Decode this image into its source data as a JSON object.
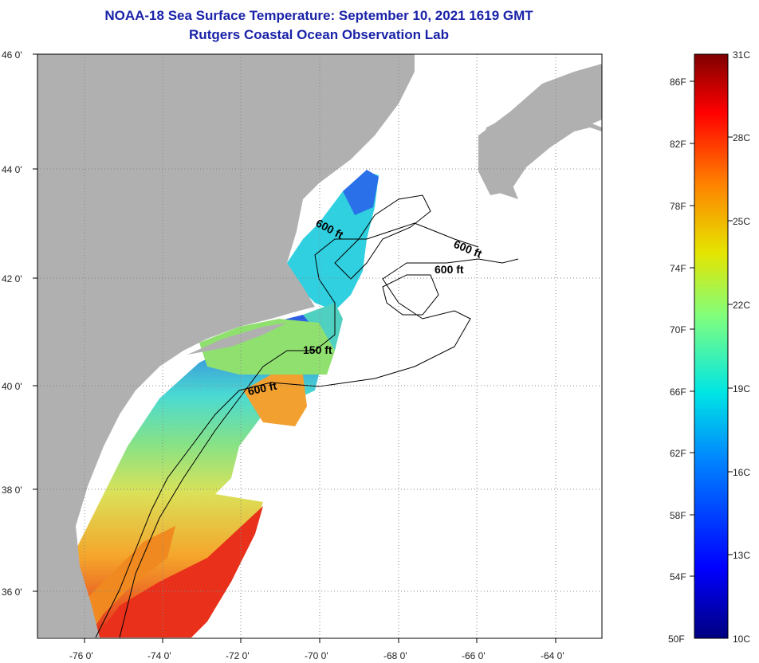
{
  "header": {
    "title": "NOAA-18 Sea Surface Temperature:  September 10, 2021 1619 GMT",
    "subtitle": "Rutgers Coastal Ocean Observation Lab"
  },
  "map": {
    "lat_labels": [
      {
        "value": 46,
        "text": "46 0'"
      },
      {
        "value": 44,
        "text": "44 0'"
      },
      {
        "value": 42,
        "text": "42 0'"
      },
      {
        "value": 40,
        "text": "40 0'"
      },
      {
        "value": 38,
        "text": "38 0'"
      },
      {
        "value": 36,
        "text": "36 0'"
      }
    ],
    "lon_labels": [
      {
        "value": -76,
        "text": "-76 0'"
      },
      {
        "value": -74,
        "text": "-74 0'"
      },
      {
        "value": -72,
        "text": "-72 0'"
      },
      {
        "value": -70,
        "text": "-70 0'"
      },
      {
        "value": -68,
        "text": "-68 0'"
      },
      {
        "value": -66,
        "text": "-66 0'"
      },
      {
        "value": -64,
        "text": "-64 0'"
      }
    ],
    "contour_labels": [
      "600 ft",
      "600 ft",
      "600 ft",
      "150 ft",
      "600 ft"
    ],
    "colors": {
      "land": "#b0b0b0",
      "ocean_missing": "#ffffff",
      "grid": "#888888"
    }
  },
  "colorbar": {
    "celsius_labels": [
      "31C",
      "28C",
      "25C",
      "22C",
      "19C",
      "16C",
      "13C",
      "10C"
    ],
    "fahrenheit_labels": [
      "86F",
      "82F",
      "78F",
      "74F",
      "70F",
      "66F",
      "62F",
      "58F",
      "54F",
      "50F"
    ],
    "range_c": [
      10,
      31
    ],
    "colors": [
      "#00007f",
      "#0000ff",
      "#0080ff",
      "#00e5e5",
      "#7fff7f",
      "#e5e500",
      "#ff8000",
      "#ff0000",
      "#7f0000"
    ]
  }
}
